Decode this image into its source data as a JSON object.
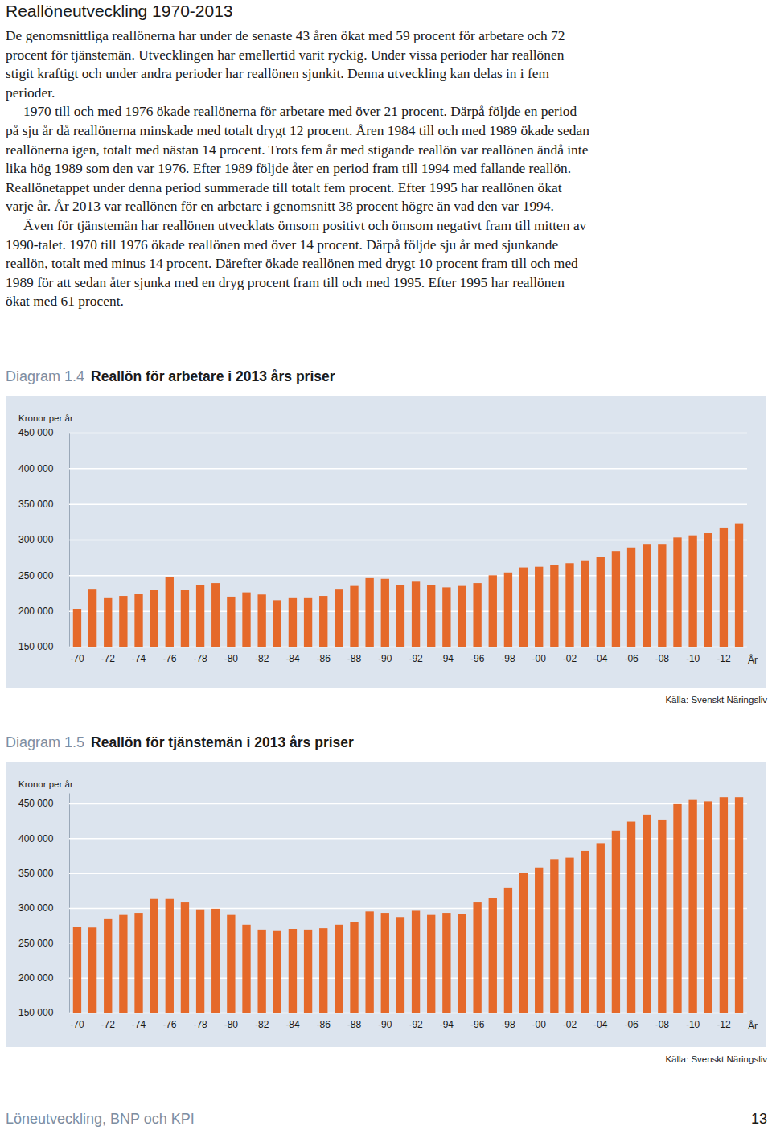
{
  "header": {
    "title": "Reallöneutveckling 1970-2013"
  },
  "paragraphs": [
    "De genomsnittliga reallönerna har under de senaste 43 åren ökat med 59 procent för arbetare och 72 procent för tjänstemän. Utvecklingen har emellertid varit ryckig. Under vissa perioder har reallönen stigit kraftigt och under andra perioder har reallönen sjunkit. Denna utveckling kan delas in i fem perioder.",
    "1970 till och med 1976 ökade reallönerna för arbetare med över 21 procent. Därpå följde en period på sju år då reallönerna minskade med totalt drygt 12 procent. Åren 1984 till och med 1989 ökade sedan reallönerna igen, totalt med nästan 14 procent. Trots fem år med stigande reallön var reallönen ändå inte lika hög 1989 som den var 1976. Efter 1989 följde åter en period fram till 1994 med fallande reallön. Reallönetappet under denna period summerade till totalt fem procent. Efter 1995 har reallönen ökat varje år. År 2013 var reallönen för en arbetare i genomsnitt 38 procent högre än vad den var 1994.",
    "Även för tjänstemän har reallönen utvecklats ömsom positivt och ömsom negativt fram till mitten av 1990-talet. 1970 till 1976 ökade reallönen med över 14 procent. Därpå följde sju år med sjunkande reallön, totalt med minus 14 procent. Därefter ökade reallönen med drygt 10 procent fram till och med 1989 för att sedan åter sjunka med en dryg procent fram till och med 1995. Efter 1995 har reallönen ökat med 61 procent."
  ],
  "chart_data": [
    {
      "type": "bar",
      "figure_label": "Diagram 1.4",
      "title": "Reallön för arbetare i 2013 års priser",
      "y_label": "Kronor per år",
      "x_label": "År",
      "source": "Källa: Svenskt Näringsliv",
      "categories": [
        "-70",
        null,
        "-72",
        null,
        "-74",
        null,
        "-76",
        null,
        "-78",
        null,
        "-80",
        null,
        "-82",
        null,
        "-84",
        null,
        "-86",
        null,
        "-88",
        null,
        "-90",
        null,
        "-92",
        null,
        "-94",
        null,
        "-96",
        null,
        "-98",
        null,
        "-00",
        null,
        "-02",
        null,
        "-04",
        null,
        "-06",
        null,
        "-08",
        null,
        "-10",
        null,
        "-12",
        null
      ],
      "values": [
        203000,
        231000,
        219000,
        221000,
        224000,
        230000,
        247000,
        229000,
        236000,
        239000,
        220000,
        226000,
        223000,
        215000,
        219000,
        219000,
        221000,
        231000,
        235000,
        246000,
        245000,
        236000,
        241000,
        236000,
        233000,
        235000,
        239000,
        250000,
        254000,
        261000,
        262000,
        264000,
        267000,
        271000,
        276000,
        284000,
        289000,
        293000,
        293000,
        303000,
        306000,
        309000,
        317000,
        323000
      ],
      "color": "#e5692a",
      "grid": true,
      "ylim": [
        150000,
        450000
      ],
      "yticks": [
        {
          "value": 150000,
          "label": "150 000"
        },
        {
          "value": 200000,
          "label": "200 000"
        },
        {
          "value": 250000,
          "label": "250 000"
        },
        {
          "value": 300000,
          "label": "300 000"
        },
        {
          "value": 350000,
          "label": "350 000"
        },
        {
          "value": 400000,
          "label": "400 000"
        },
        {
          "value": 450000,
          "label": "450 000"
        }
      ]
    },
    {
      "type": "bar",
      "figure_label": "Diagram 1.5",
      "title": "Reallön för tjänstemän i 2013 års priser",
      "y_label": "Kronor per år",
      "x_label": "År",
      "source": "Källa: Svenskt Näringsliv",
      "categories": [
        "-70",
        null,
        "-72",
        null,
        "-74",
        null,
        "-76",
        null,
        "-78",
        null,
        "-80",
        null,
        "-82",
        null,
        "-84",
        null,
        "-86",
        null,
        "-88",
        null,
        "-90",
        null,
        "-92",
        null,
        "-94",
        null,
        "-96",
        null,
        "-98",
        null,
        "-00",
        null,
        "-02",
        null,
        "-04",
        null,
        "-06",
        null,
        "-08",
        null,
        "-10",
        null,
        "-12",
        null
      ],
      "values": [
        273000,
        272000,
        284000,
        290000,
        293000,
        313000,
        313000,
        308000,
        298000,
        299000,
        290000,
        276000,
        269000,
        268000,
        270000,
        269000,
        271000,
        276000,
        280000,
        295000,
        293000,
        287000,
        296000,
        290000,
        293000,
        291000,
        308000,
        314000,
        329000,
        350000,
        358000,
        370000,
        372000,
        382000,
        393000,
        411000,
        424000,
        434000,
        427000,
        449000,
        455000,
        453000,
        459000,
        459000
      ],
      "color": "#e5692a",
      "grid": true,
      "ylim": [
        150000,
        465000
      ],
      "yticks": [
        {
          "value": 150000,
          "label": "150 000"
        },
        {
          "value": 200000,
          "label": "200 000"
        },
        {
          "value": 250000,
          "label": "250 000"
        },
        {
          "value": 300000,
          "label": "300 000"
        },
        {
          "value": 350000,
          "label": "350 000"
        },
        {
          "value": 400000,
          "label": "400 000"
        },
        {
          "value": 450000,
          "label": "450 000"
        }
      ]
    }
  ],
  "footer": {
    "left": "Löneutveckling, BNP och KPI",
    "page": 13
  }
}
